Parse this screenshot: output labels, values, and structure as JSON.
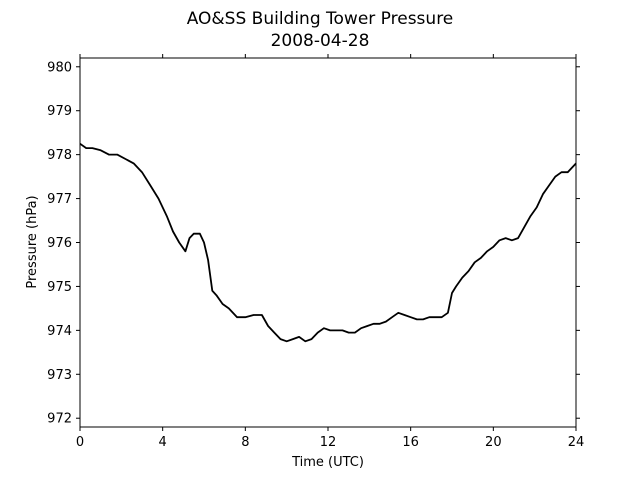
{
  "chart_data": {
    "type": "line",
    "title": "AO&SS Building Tower Pressure",
    "subtitle": "2008-04-28",
    "xlabel": "Time (UTC)",
    "ylabel": "Pressure (hPa)",
    "xlim": [
      0,
      24
    ],
    "ylim": [
      971.8,
      980.2
    ],
    "xticks": [
      0,
      4,
      8,
      12,
      16,
      20,
      24
    ],
    "yticks": [
      972,
      973,
      974,
      975,
      976,
      977,
      978,
      979,
      980
    ],
    "grid": false,
    "line_color": "#000000",
    "series": [
      {
        "x": [
          0,
          0.3,
          0.6,
          1.0,
          1.4,
          1.8,
          2.2,
          2.6,
          3.0,
          3.4,
          3.8,
          4.2,
          4.5,
          4.8,
          5.1,
          5.3,
          5.5,
          5.8,
          6.0,
          6.2,
          6.4,
          6.6,
          6.9,
          7.2,
          7.6,
          8.0,
          8.4,
          8.8,
          9.1,
          9.4,
          9.7,
          10.0,
          10.3,
          10.6,
          10.9,
          11.2,
          11.5,
          11.8,
          12.1,
          12.4,
          12.7,
          13.0,
          13.3,
          13.6,
          13.9,
          14.2,
          14.5,
          14.8,
          15.1,
          15.4,
          15.7,
          16.0,
          16.3,
          16.6,
          16.9,
          17.2,
          17.5,
          17.8,
          18.0,
          18.2,
          18.5,
          18.8,
          19.1,
          19.4,
          19.7,
          20.0,
          20.3,
          20.6,
          20.9,
          21.2,
          21.5,
          21.8,
          22.1,
          22.4,
          22.7,
          23.0,
          23.3,
          23.6,
          24.0
        ],
        "y": [
          978.25,
          978.15,
          978.15,
          978.1,
          978.0,
          978.0,
          977.9,
          977.8,
          977.6,
          977.3,
          977.0,
          976.6,
          976.25,
          976.0,
          975.8,
          976.1,
          976.2,
          976.2,
          976.0,
          975.6,
          974.9,
          974.8,
          974.6,
          974.5,
          974.3,
          974.3,
          974.35,
          974.35,
          974.1,
          973.95,
          973.8,
          973.75,
          973.8,
          973.85,
          973.75,
          973.8,
          973.95,
          974.05,
          974.0,
          974.0,
          974.0,
          973.95,
          973.95,
          974.05,
          974.1,
          974.15,
          974.15,
          974.2,
          974.3,
          974.4,
          974.35,
          974.3,
          974.25,
          974.25,
          974.3,
          974.3,
          974.3,
          974.4,
          974.85,
          975.0,
          975.2,
          975.35,
          975.55,
          975.65,
          975.8,
          975.9,
          976.05,
          976.1,
          976.05,
          976.1,
          976.35,
          976.6,
          976.8,
          977.1,
          977.3,
          977.5,
          977.6,
          977.6,
          977.8
        ]
      }
    ]
  }
}
